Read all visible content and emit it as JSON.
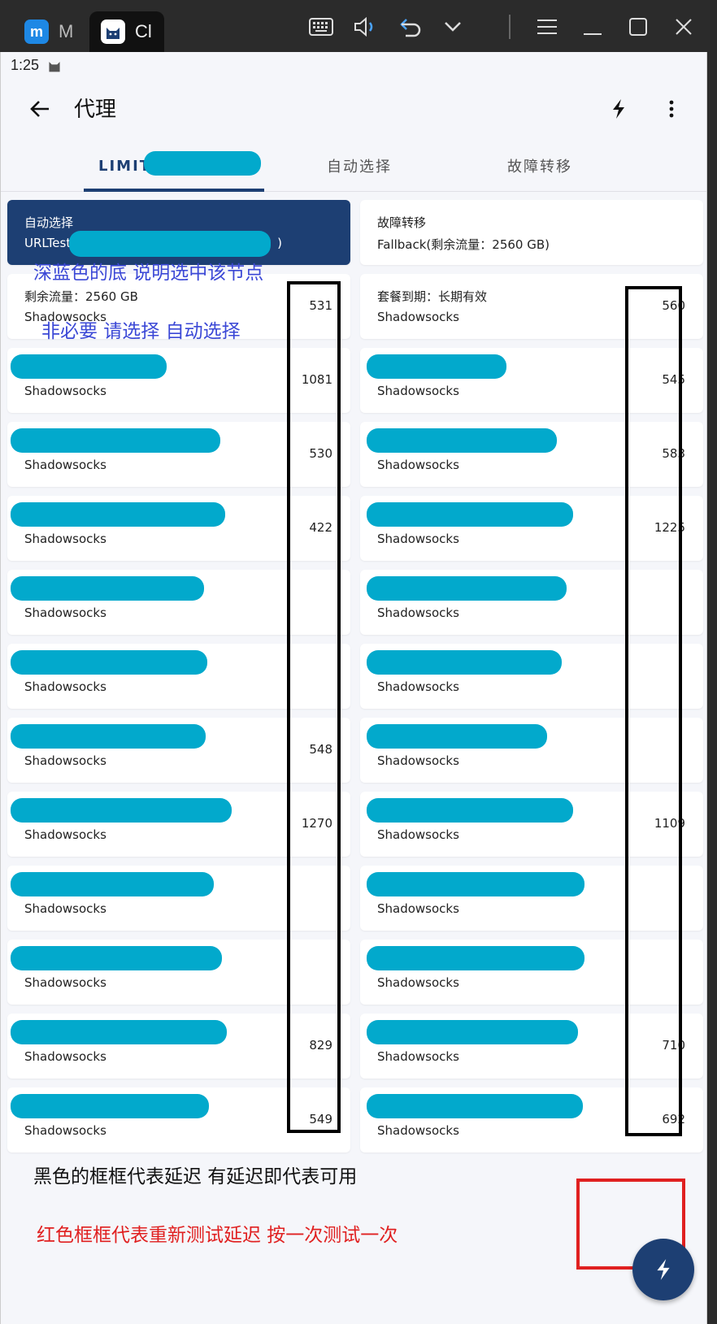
{
  "window": {
    "tabs": [
      {
        "label": "M"
      },
      {
        "label": "Cl"
      }
    ]
  },
  "status": {
    "time": "1:25"
  },
  "appbar": {
    "title": "代理"
  },
  "proxy_tabs": [
    "LIMIT",
    "自动选择",
    "故障转移"
  ],
  "groups": [
    {
      "name": "自动选择",
      "type": "URLTest(",
      "type_suffix": ")",
      "selected": true
    },
    {
      "name": "故障转移",
      "type": "Fallback(剩余流量：2560 GB)",
      "selected": false
    }
  ],
  "left_nodes": [
    {
      "name": "剩余流量：2560 GB",
      "type": "Shadowsocks",
      "delay": "531"
    },
    {
      "name": "",
      "type": "Shadowsocks",
      "delay": "1081"
    },
    {
      "name": "",
      "type": "Shadowsocks",
      "delay": "530"
    },
    {
      "name": "",
      "type": "Shadowsocks",
      "delay": "422"
    },
    {
      "name": "",
      "type": "Shadowsocks",
      "delay": ""
    },
    {
      "name": "",
      "type": "Shadowsocks",
      "delay": ""
    },
    {
      "name": "",
      "type": "Shadowsocks",
      "delay": "548"
    },
    {
      "name": "",
      "type": "Shadowsocks",
      "delay": "1270"
    },
    {
      "name": "",
      "type": "Shadowsocks",
      "delay": ""
    },
    {
      "name": "",
      "type": "Shadowsocks",
      "delay": ""
    },
    {
      "name": "",
      "type": "Shadowsocks",
      "delay": "829"
    },
    {
      "name": "",
      "type": "Shadowsocks",
      "delay": "549"
    }
  ],
  "right_nodes": [
    {
      "name": "套餐到期：长期有效",
      "type": "Shadowsocks",
      "delay": "560"
    },
    {
      "name": "",
      "type": "Shadowsocks",
      "delay": "545"
    },
    {
      "name": "",
      "type": "Shadowsocks",
      "delay": "583"
    },
    {
      "name": "",
      "type": "Shadowsocks",
      "delay": "1225"
    },
    {
      "name": "",
      "type": "Shadowsocks",
      "delay": ""
    },
    {
      "name": "",
      "type": "Shadowsocks",
      "delay": ""
    },
    {
      "name": "",
      "type": "Shadowsocks",
      "delay": ""
    },
    {
      "name": "",
      "type": "Shadowsocks",
      "delay": "1109"
    },
    {
      "name": "",
      "type": "Shadowsocks",
      "delay": ""
    },
    {
      "name": "",
      "type": "Shadowsocks",
      "delay": ""
    },
    {
      "name": "",
      "type": "Shadowsocks",
      "delay": "710"
    },
    {
      "name": "",
      "type": "Shadowsocks",
      "delay": "692"
    }
  ],
  "annotations": {
    "selected_note": "深蓝色的底 说明选中该节点",
    "select_note": "非必要 请选择 自动选择",
    "delay_note": "黑色的框框代表延迟 有延迟即代表可用",
    "retest_note": "红色框框代表重新测试延迟 按一次测试一次"
  },
  "colors": {
    "primary": "#1d3f73",
    "mask": "#02a9cc",
    "annotation_blue": "#3b48d6",
    "annotation_red": "#e02020"
  },
  "icons": {
    "back": "arrow-left-icon",
    "bolt": "lightning-icon",
    "more": "more-vert-icon"
  }
}
